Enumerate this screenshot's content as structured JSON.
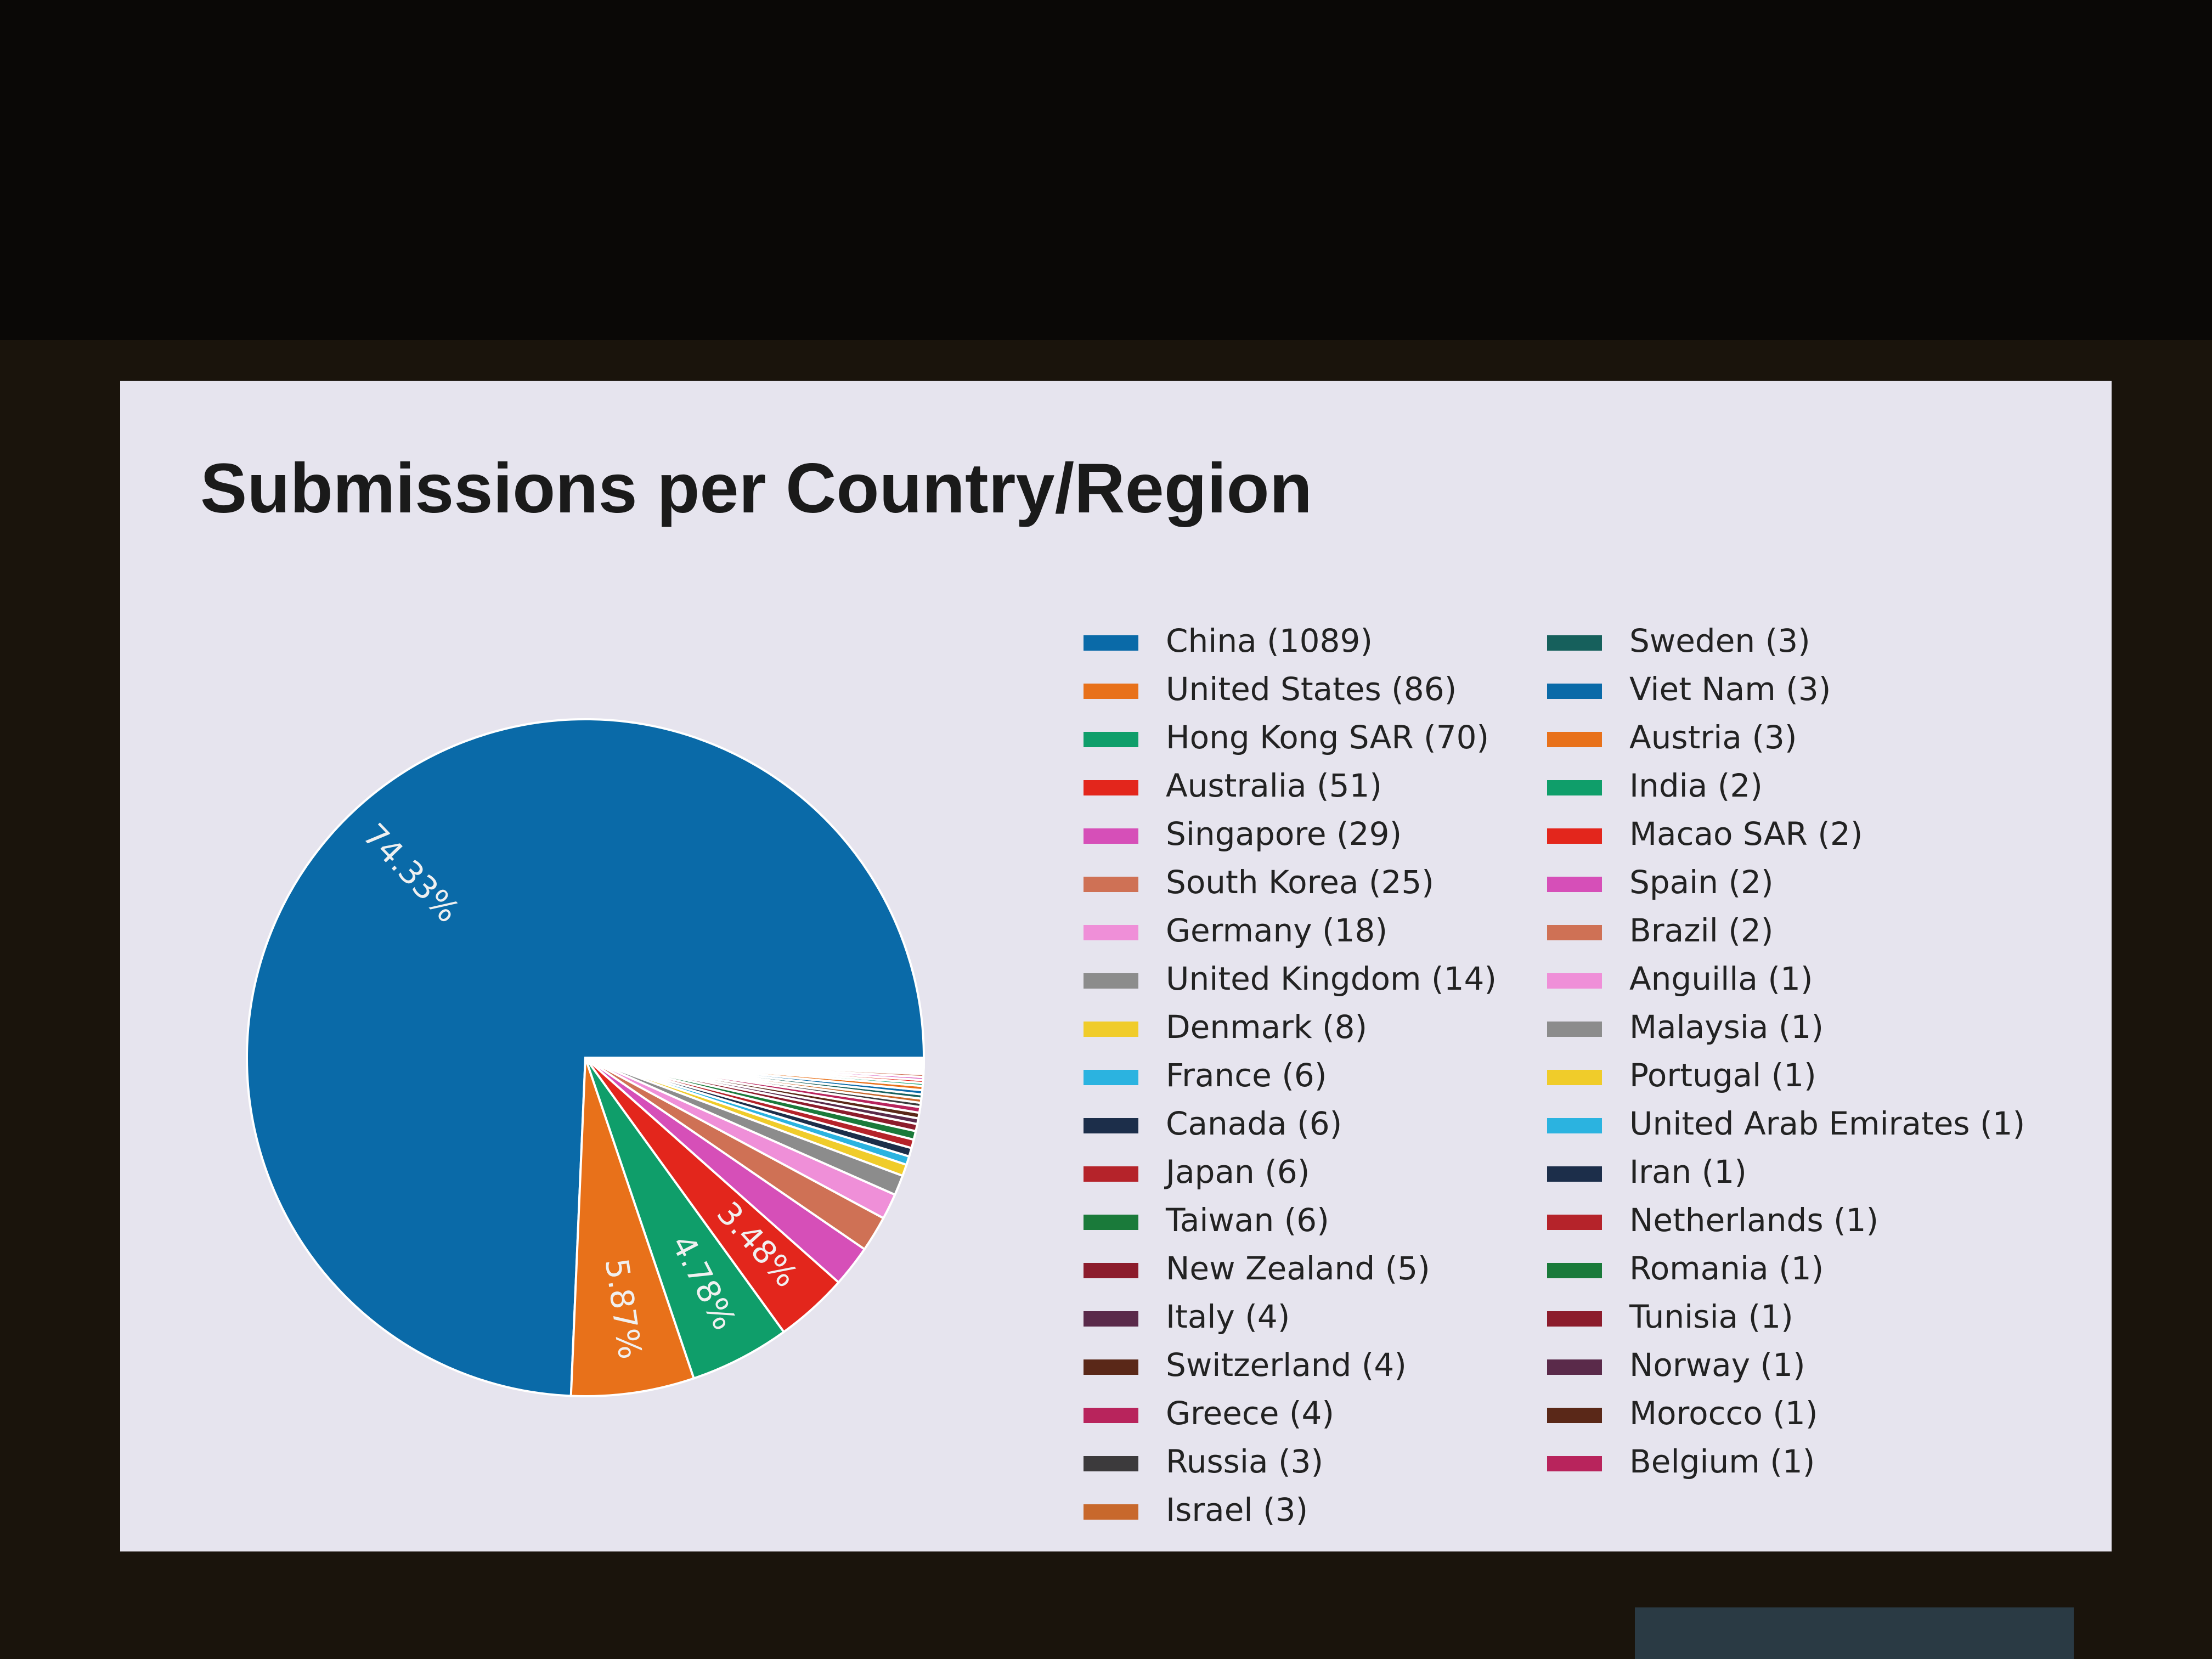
{
  "chart_data": {
    "type": "pie",
    "title": "Submissions per Country/Region",
    "categories": [
      "China (1089)",
      "United States (86)",
      "Hong Kong SAR (70)",
      "Australia (51)",
      "Singapore (29)",
      "South Korea (25)",
      "Germany (18)",
      "United Kingdom (14)",
      "Denmark (8)",
      "France (6)",
      "Canada (6)",
      "Japan (6)",
      "Taiwan (6)",
      "New Zealand (5)",
      "Italy (4)",
      "Switzerland (4)",
      "Greece (4)",
      "Russia (3)",
      "Israel (3)",
      "Sweden (3)",
      "Viet Nam (3)",
      "Austria (3)",
      "India (2)",
      "Macao SAR (2)",
      "Spain (2)",
      "Brazil (2)",
      "Anguilla (1)",
      "Malaysia (1)",
      "Portugal (1)",
      "United Arab Emirates (1)",
      "Iran (1)",
      "Netherlands (1)",
      "Romania (1)",
      "Tunisia (1)",
      "Norway (1)",
      "Morocco (1)",
      "Belgium (1)"
    ],
    "values": [
      74.33,
      5.87,
      4.78,
      3.48,
      1.98,
      1.71,
      1.23,
      0.96,
      0.55,
      0.41,
      0.41,
      0.41,
      0.41,
      0.34,
      0.27,
      0.27,
      0.27,
      0.2,
      0.2,
      0.2,
      0.2,
      0.2,
      0.14,
      0.14,
      0.14,
      0.14,
      0.07,
      0.07,
      0.07,
      0.07,
      0.07,
      0.07,
      0.07,
      0.07,
      0.07,
      0.07,
      0.07
    ],
    "value_labels": [
      "74.33%",
      "5.87%",
      "4.78%",
      "3.48%",
      null,
      null,
      null,
      null,
      null,
      null,
      null,
      null,
      null,
      null,
      null,
      null,
      null,
      null,
      null,
      null,
      null,
      null,
      null,
      null,
      null,
      null,
      null,
      null,
      null,
      null,
      null,
      null,
      null,
      null,
      null,
      null,
      null
    ],
    "colors": [
      "#0a6aa8",
      "#e8711a",
      "#0f9e6a",
      "#e3261c",
      "#d64fb8",
      "#cf7155",
      "#ef8fd8",
      "#8c8c8c",
      "#f0cc2a",
      "#2bb3e0",
      "#1c2e4a",
      "#b5232a",
      "#1a7a3a",
      "#8c1c2c",
      "#5a2a4a",
      "#5a2818",
      "#b8245c",
      "#3c3a3c",
      "#c8682c",
      "#16605c",
      "#0a6aa8",
      "#e8711a",
      "#0f9e6a",
      "#e3261c",
      "#d64fb8",
      "#cf7155",
      "#ef8fd8",
      "#8c8c8c",
      "#f0cc2a",
      "#2bb3e0",
      "#1c2e4a",
      "#b5232a",
      "#1a7a3a",
      "#8c1c2c",
      "#5a2a4a",
      "#5a2818",
      "#b8245c"
    ]
  }
}
